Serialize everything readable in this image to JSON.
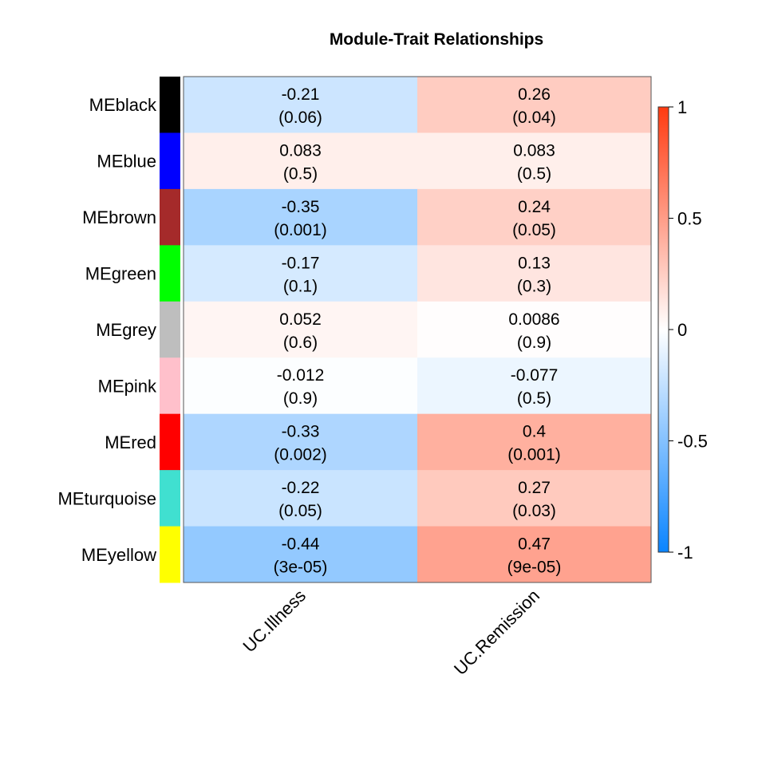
{
  "chart_data": {
    "type": "heatmap",
    "title": "Module-Trait Relationships",
    "rows": [
      {
        "label": "MEblack",
        "module_color": "#000000"
      },
      {
        "label": "MEblue",
        "module_color": "#0000FF"
      },
      {
        "label": "MEbrown",
        "module_color": "#A52A2A"
      },
      {
        "label": "MEgreen",
        "module_color": "#00FF00"
      },
      {
        "label": "MEgrey",
        "module_color": "#BEBEBE"
      },
      {
        "label": "MEpink",
        "module_color": "#FFC0CB"
      },
      {
        "label": "MEred",
        "module_color": "#FF0000"
      },
      {
        "label": "MEturquoise",
        "module_color": "#40E0D0"
      },
      {
        "label": "MEyellow",
        "module_color": "#FFFF00"
      }
    ],
    "columns": [
      "UC.Illness",
      "UC.Remission"
    ],
    "values": [
      [
        -0.21,
        0.26
      ],
      [
        0.083,
        0.083
      ],
      [
        -0.35,
        0.24
      ],
      [
        -0.17,
        0.13
      ],
      [
        0.052,
        0.0086
      ],
      [
        -0.012,
        -0.077
      ],
      [
        -0.33,
        0.4
      ],
      [
        -0.22,
        0.27
      ],
      [
        -0.44,
        0.47
      ]
    ],
    "cell_text": [
      [
        "-0.21\n(0.06)",
        "0.26\n(0.04)"
      ],
      [
        "0.083\n(0.5)",
        "0.083\n(0.5)"
      ],
      [
        "-0.35\n(0.001)",
        "0.24\n(0.05)"
      ],
      [
        "-0.17\n(0.1)",
        "0.13\n(0.3)"
      ],
      [
        "0.052\n(0.6)",
        "0.0086\n(0.9)"
      ],
      [
        "-0.012\n(0.9)",
        "-0.077\n(0.5)"
      ],
      [
        "-0.33\n(0.002)",
        "0.4\n(0.001)"
      ],
      [
        "-0.22\n(0.05)",
        "0.27\n(0.03)"
      ],
      [
        "-0.44\n(3e-05)",
        "0.47\n(9e-05)"
      ]
    ],
    "color_scale": {
      "range": [
        -1,
        1
      ],
      "low_color": "#0A84FF",
      "mid_color": "#FFFFFF",
      "high_color": "#FF3A10",
      "ticks": [
        "1",
        "0.5",
        "0",
        "-0.5",
        "-1"
      ],
      "tick_values": [
        1,
        0.5,
        0,
        -0.5,
        -1
      ]
    }
  }
}
